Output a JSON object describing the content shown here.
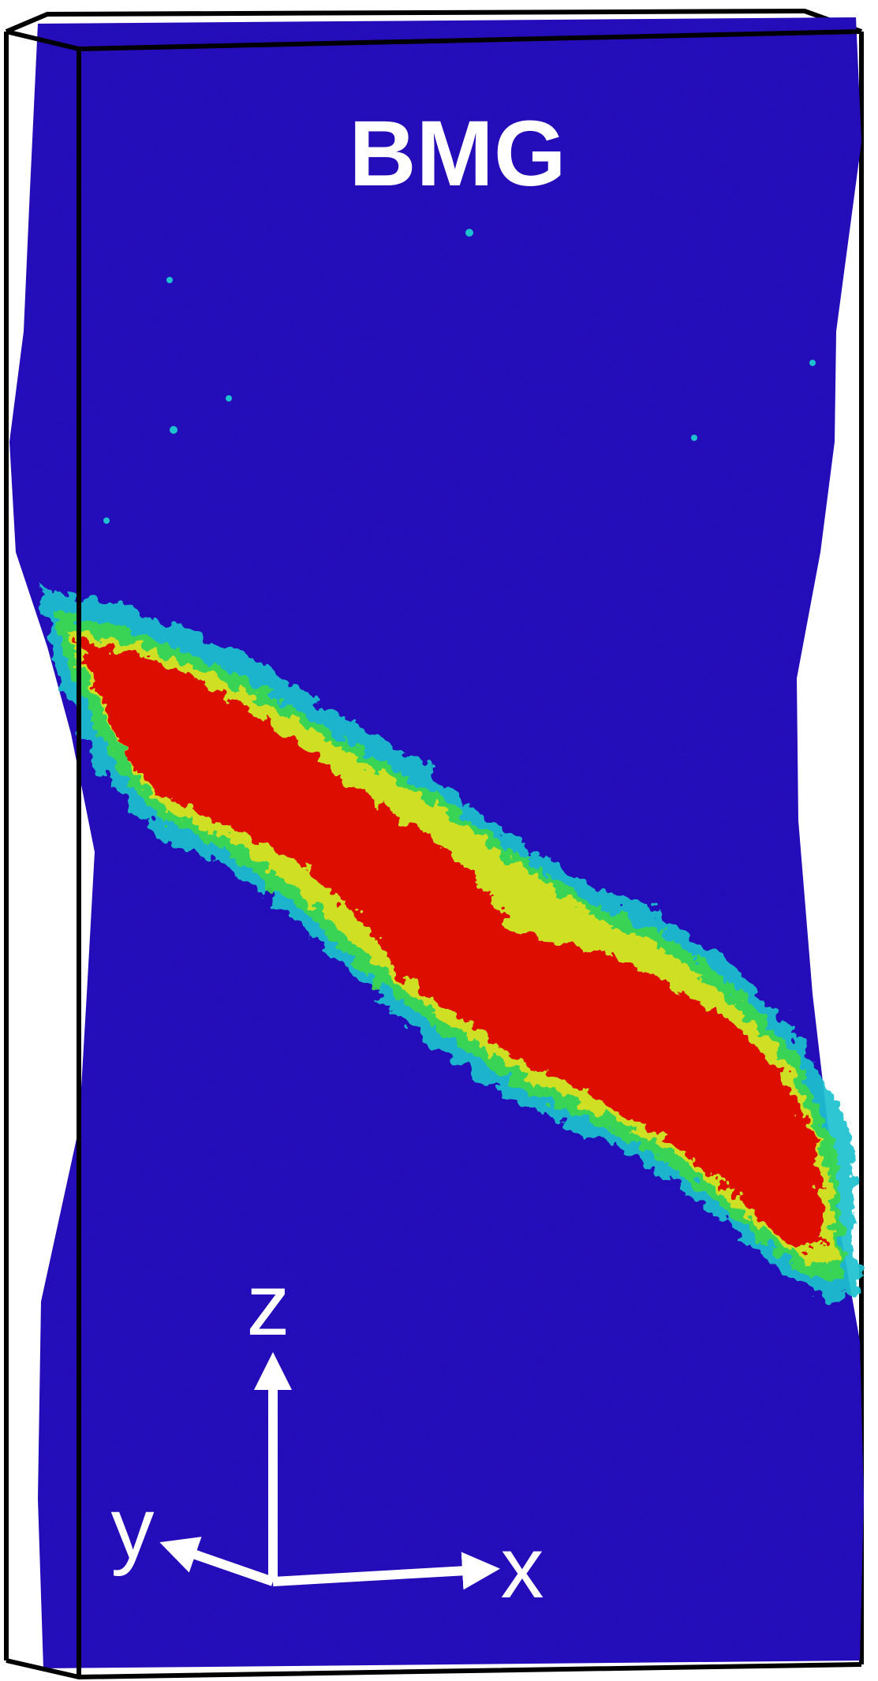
{
  "figure": {
    "title": "BMG",
    "axes": {
      "z_label": "z",
      "y_label": "y",
      "x_label": "x"
    },
    "colors": {
      "matrix": "#2a12c4",
      "band_core": "#dd1006",
      "band_yellow": "#e8e21a",
      "band_green": "#3ed84a",
      "band_cyan": "#1ec2cf",
      "box_line": "#000000",
      "label": "#ffffff"
    }
  }
}
